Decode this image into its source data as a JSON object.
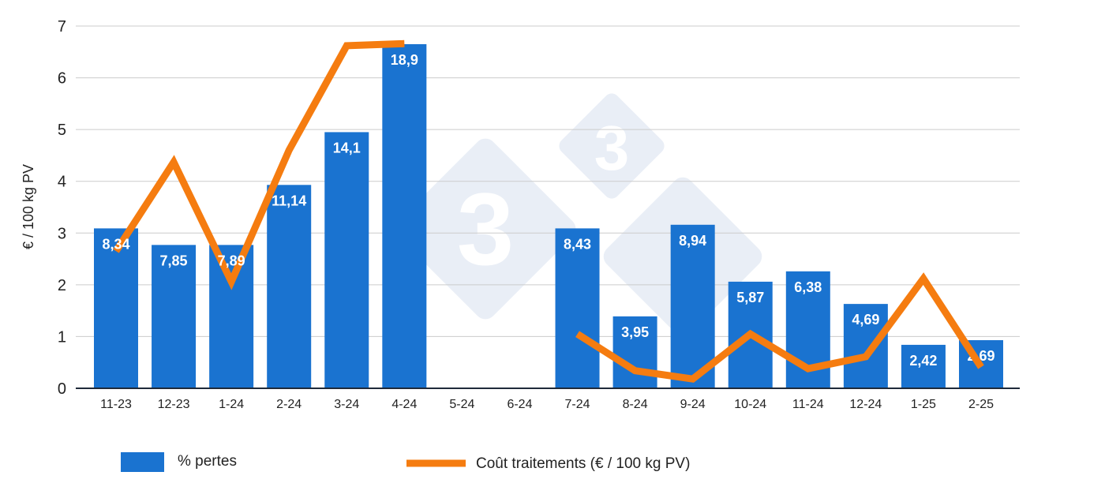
{
  "chart_data": {
    "type": "bar",
    "title": "",
    "xlabel": "",
    "ylabel": "€ / 100 kg PV",
    "ylim": [
      0,
      7
    ],
    "yticks": [
      "0",
      "1",
      "2",
      "3",
      "4",
      "5",
      "6",
      "7"
    ],
    "grid": true,
    "legend_position": "bottom",
    "categories": [
      "11-23",
      "12-23",
      "1-24",
      "2-24",
      "3-24",
      "4-24",
      "5-24",
      "6-24",
      "7-24",
      "8-24",
      "9-24",
      "10-24",
      "11-24",
      "12-24",
      "1-25",
      "2-25"
    ],
    "series": [
      {
        "name": "% pertes",
        "type": "bar",
        "color": "#1a73d0",
        "values": [
          8.34,
          7.85,
          7.89,
          11.14,
          14.1,
          18.9,
          null,
          null,
          8.43,
          3.95,
          8.94,
          5.87,
          6.38,
          4.69,
          2.42,
          2.69
        ],
        "data_labels": [
          "8,34",
          "7,85",
          "7,89",
          "11,14",
          "14,1",
          "18,9",
          "",
          "",
          "8,43",
          "3,95",
          "8,94",
          "5,87",
          "6,38",
          "4,69",
          "2,42",
          "2,69"
        ],
        "plotted_heights_on_axis": [
          3.09,
          2.77,
          2.77,
          3.93,
          4.95,
          6.65,
          null,
          null,
          3.09,
          1.39,
          3.16,
          2.06,
          2.26,
          1.63,
          0.84,
          0.93
        ]
      },
      {
        "name": "Coût traitements (€ / 100 kg PV)",
        "type": "line",
        "color": "#f57c10",
        "values": [
          2.65,
          4.37,
          2.06,
          4.6,
          6.62,
          6.66,
          null,
          null,
          1.05,
          0.34,
          0.18,
          1.05,
          0.38,
          0.61,
          2.12,
          0.41
        ]
      }
    ]
  }
}
